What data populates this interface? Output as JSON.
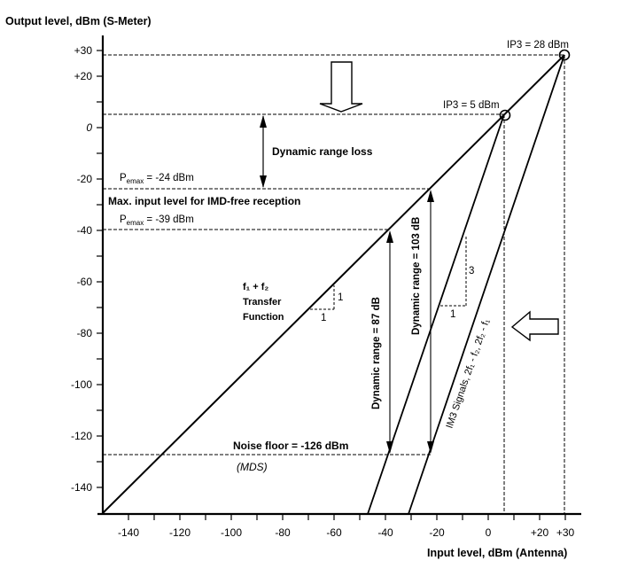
{
  "chart_data": {
    "type": "line",
    "title": "",
    "xlabel": "Input level, dBm (Antenna)",
    "ylabel": "Output level, dBm (S-Meter)",
    "xlim": [
      -150,
      30
    ],
    "ylim": [
      -150,
      30
    ],
    "x_ticks": [
      "-140",
      "-120",
      "-100",
      "-80",
      "-60",
      "-40",
      "-20",
      "0",
      "+20",
      "+30"
    ],
    "y_ticks": [
      "+30",
      "+20",
      "0",
      "-20",
      "-40",
      "-60",
      "-80",
      "-100",
      "-120",
      "-140"
    ],
    "grid": false,
    "series": [
      {
        "name": "f1 + f2 Transfer Function",
        "slope": 1,
        "points": [
          [
            -150,
            -150
          ],
          [
            28,
            28
          ]
        ]
      },
      {
        "name": "IM3 Signals (IP3 = 5 dBm)",
        "slope": 3,
        "points": [
          [
            -47,
            -150
          ],
          [
            5,
            5
          ]
        ]
      },
      {
        "name": "IM3 Signals (IP3 = 28 dBm)",
        "slope": 3,
        "points": [
          [
            -31,
            -150
          ],
          [
            28,
            28
          ]
        ]
      }
    ],
    "reference_levels": [
      {
        "label": "IP3 = 28 dBm",
        "value": 28
      },
      {
        "label": "IP3 = 5 dBm",
        "value": 5
      },
      {
        "label": "Pemax = -24 dBm",
        "value": -24
      },
      {
        "label": "Pemax = -39 dBm",
        "value": -39
      },
      {
        "label": "Noise floor = -126 dBm",
        "value": -126
      }
    ],
    "annotations": [
      "Dynamic range loss",
      "Max. input level for IMD-free reception",
      "Dynamic range = 87 dB",
      "Dynamic range = 103 dB",
      "(MDS)",
      "IM3 Signals, 2f1 - f2, 2f2 - f1"
    ]
  },
  "labels": {
    "y_axis_title": "Output level, dBm (S-Meter)",
    "x_axis_title": "Input level, dBm (Antenna)",
    "ip3_high": "IP3 = 28 dBm",
    "ip3_low": "IP3 = 5 dBm",
    "dyn_range_loss": "Dynamic range loss",
    "pemax_1_prefix": "P",
    "pemax_1_sub": "emax",
    "pemax_1_suffix": " = -24 dBm",
    "max_input": "Max. input level for IMD-free reception",
    "pemax_2_prefix": "P",
    "pemax_2_sub": "emax",
    "pemax_2_suffix": " = -39 dBm",
    "transfer_line1": "f₁ + f₂",
    "transfer_line2": "Transfer",
    "transfer_line3": "Function",
    "slope1_run": "1",
    "slope1_rise": "1",
    "slope3_run": "1",
    "slope3_rise": "3",
    "dyn_87": "Dynamic range = 87 dB",
    "dyn_103": "Dynamic range = 103 dB",
    "im3": "IM3 Signals, 2f₁ - f₂, 2f₂ - f₁",
    "noise_floor": "Noise floor = -126 dBm",
    "mds": "(MDS)"
  },
  "y_ticks": [
    {
      "label": "+30",
      "v": 30
    },
    {
      "label": "+20",
      "v": 20
    },
    {
      "label": "0",
      "v": 0
    },
    {
      "label": "-20",
      "v": -20
    },
    {
      "label": "-40",
      "v": -40
    },
    {
      "label": "-60",
      "v": -60
    },
    {
      "label": "-80",
      "v": -80
    },
    {
      "label": "-100",
      "v": -100
    },
    {
      "label": "-120",
      "v": -120
    },
    {
      "label": "-140",
      "v": -140
    }
  ],
  "x_ticks": [
    {
      "label": "-140",
      "v": -140
    },
    {
      "label": "-120",
      "v": -120
    },
    {
      "label": "-100",
      "v": -100
    },
    {
      "label": "-80",
      "v": -80
    },
    {
      "label": "-60",
      "v": -60
    },
    {
      "label": "-40",
      "v": -40
    },
    {
      "label": "-20",
      "v": -20
    },
    {
      "label": "0",
      "v": 0
    },
    {
      "label": "+20",
      "v": 20
    },
    {
      "label": "+30",
      "v": 30
    }
  ]
}
